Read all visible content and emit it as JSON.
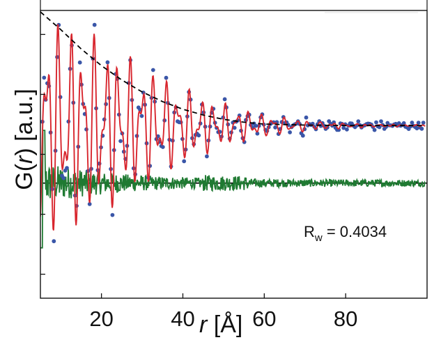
{
  "chart_data": {
    "type": "line",
    "xlabel": {
      "italic": "r",
      "rest": " [Å]"
    },
    "ylabel": {
      "pre": "G(",
      "italic": "r",
      "post": ") [a.u.]"
    },
    "xlim": [
      5,
      100
    ],
    "ylim": [
      -3.0,
      3.0
    ],
    "x_ticks": [
      20,
      40,
      60,
      80
    ],
    "x_tick_labels": [
      "20",
      "40",
      "60",
      "80"
    ],
    "y_ticks": [
      -2.5,
      -1.25,
      0,
      1.25,
      2.5
    ],
    "y_tick_labels": [],
    "annotation": {
      "text": "R",
      "subscript": "w",
      "value": " = 0.4034"
    },
    "colors": {
      "data_points": "#3a56a8",
      "fit": "#d8262e",
      "difference": "#1f7a32",
      "envelope": "#000000",
      "baseline": "#000000"
    },
    "series": [
      {
        "kind": "scatter",
        "role": "observed",
        "offset": 0.6,
        "x_start": 5.5,
        "x_end": 99.5,
        "x_step": 0.4
      },
      {
        "kind": "line",
        "role": "fit",
        "offset": 0.6,
        "x_start": 5,
        "x_end": 99.6,
        "x_step": 0.12
      },
      {
        "kind": "line",
        "role": "difference",
        "offset": -0.6,
        "x_start": 5,
        "x_end": 99.6,
        "x_step": 0.12
      },
      {
        "kind": "dashed",
        "role": "envelope",
        "offset": 0.6,
        "points": [
          [
            5,
            2.37
          ],
          [
            10,
            2.0
          ],
          [
            15,
            1.6
          ],
          [
            20,
            1.25
          ],
          [
            25,
            0.95
          ],
          [
            30,
            0.7
          ],
          [
            35,
            0.5
          ],
          [
            40,
            0.34
          ],
          [
            45,
            0.22
          ],
          [
            50,
            0.13
          ],
          [
            55,
            0.07
          ],
          [
            60,
            0.03
          ],
          [
            70,
            0.01
          ],
          [
            80,
            0.0
          ],
          [
            99,
            0.0
          ]
        ]
      },
      {
        "kind": "hline",
        "role": "difference-baseline",
        "y": -0.6
      }
    ]
  }
}
